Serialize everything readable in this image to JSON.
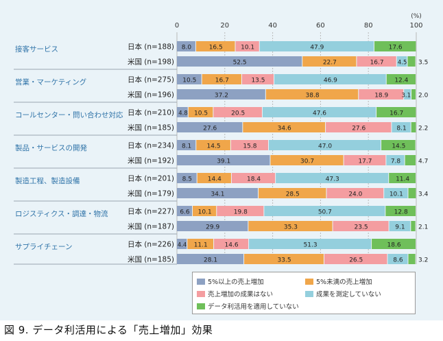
{
  "caption": "図 9. データ利活用による「売上増加」効果",
  "chart_data": {
    "type": "bar",
    "orientation": "horizontal",
    "stacked": true,
    "unit_label": "(%)",
    "xlim": [
      0,
      100
    ],
    "xticks": [
      0,
      20,
      40,
      60,
      80,
      100
    ],
    "grid": true,
    "legend_placement": "bottom-right",
    "series": [
      {
        "name": "5%以上の売上増加",
        "color": "#8da1c2"
      },
      {
        "name": "5%未満の売上増加",
        "color": "#f0a64a"
      },
      {
        "name": "売上増加の成果はない",
        "color": "#f49da0"
      },
      {
        "name": "成果を測定していない",
        "color": "#94cfdd"
      },
      {
        "name": "データ利活用を適用していない",
        "color": "#6fbf5a"
      }
    ],
    "groups": [
      {
        "name": "接客サービス",
        "rows": [
          {
            "label": "日本 (n=188)",
            "values": [
              8.0,
              16.5,
              10.1,
              47.9,
              17.6
            ]
          },
          {
            "label": "米国 (n=198)",
            "values": [
              52.5,
              22.7,
              16.7,
              4.5,
              3.5
            ]
          }
        ]
      },
      {
        "name": "営業・マーケティング",
        "rows": [
          {
            "label": "日本 (n=275)",
            "values": [
              10.5,
              16.7,
              13.5,
              46.9,
              12.4
            ]
          },
          {
            "label": "米国 (n=196)",
            "values": [
              37.2,
              38.8,
              18.9,
              3.1,
              2.0
            ]
          }
        ]
      },
      {
        "name": "コールセンター・問い合わせ対応",
        "rows": [
          {
            "label": "日本 (n=210)",
            "values": [
              4.8,
              10.5,
              20.5,
              47.6,
              16.7
            ]
          },
          {
            "label": "米国 (n=185)",
            "values": [
              27.6,
              34.6,
              27.6,
              8.1,
              2.2
            ]
          }
        ]
      },
      {
        "name": "製品・サービスの開発",
        "rows": [
          {
            "label": "日本 (n=234)",
            "values": [
              8.1,
              14.5,
              15.8,
              47.0,
              14.5
            ]
          },
          {
            "label": "米国 (n=192)",
            "values": [
              39.1,
              30.7,
              17.7,
              7.8,
              4.7
            ]
          }
        ]
      },
      {
        "name": "製造工程、製造設備",
        "rows": [
          {
            "label": "日本 (n=201)",
            "values": [
              8.5,
              14.4,
              18.4,
              47.3,
              11.4
            ]
          },
          {
            "label": "米国 (n=179)",
            "values": [
              34.1,
              28.5,
              24.0,
              10.1,
              3.4
            ]
          }
        ]
      },
      {
        "name": "ロジスティクス・調達・物流",
        "rows": [
          {
            "label": "日本 (n=227)",
            "values": [
              6.6,
              10.1,
              19.8,
              50.7,
              12.8
            ]
          },
          {
            "label": "米国 (n=187)",
            "values": [
              29.9,
              35.3,
              23.5,
              9.1,
              2.1
            ]
          }
        ]
      },
      {
        "name": "サプライチェーン",
        "rows": [
          {
            "label": "日本 (n=226)",
            "values": [
              4.4,
              11.1,
              14.6,
              51.3,
              18.6
            ]
          },
          {
            "label": "米国 (n=185)",
            "values": [
              28.1,
              33.5,
              26.5,
              8.6,
              3.2
            ]
          }
        ]
      }
    ]
  }
}
